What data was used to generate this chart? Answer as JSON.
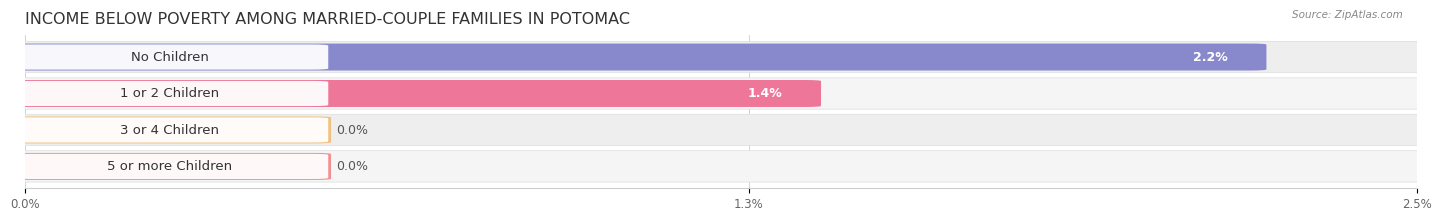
{
  "title": "INCOME BELOW POVERTY AMONG MARRIED-COUPLE FAMILIES IN POTOMAC",
  "source": "Source: ZipAtlas.com",
  "categories": [
    "No Children",
    "1 or 2 Children",
    "3 or 4 Children",
    "5 or more Children"
  ],
  "values": [
    2.2,
    1.4,
    0.0,
    0.0
  ],
  "value_labels": [
    "2.2%",
    "1.4%",
    "0.0%",
    "0.0%"
  ],
  "bar_colors": [
    "#8888cc",
    "#ee7799",
    "#f0c080",
    "#f09090"
  ],
  "row_bg_colors": [
    "#eeeeee",
    "#f5f5f5",
    "#eeeeee",
    "#f5f5f5"
  ],
  "xlim": [
    0,
    2.5
  ],
  "xticks": [
    0.0,
    1.3,
    2.5
  ],
  "xtick_labels": [
    "0.0%",
    "1.3%",
    "2.5%"
  ],
  "bar_height": 0.68,
  "background_color": "#ffffff",
  "title_fontsize": 11.5,
  "label_fontsize": 9.5,
  "value_fontsize": 9
}
